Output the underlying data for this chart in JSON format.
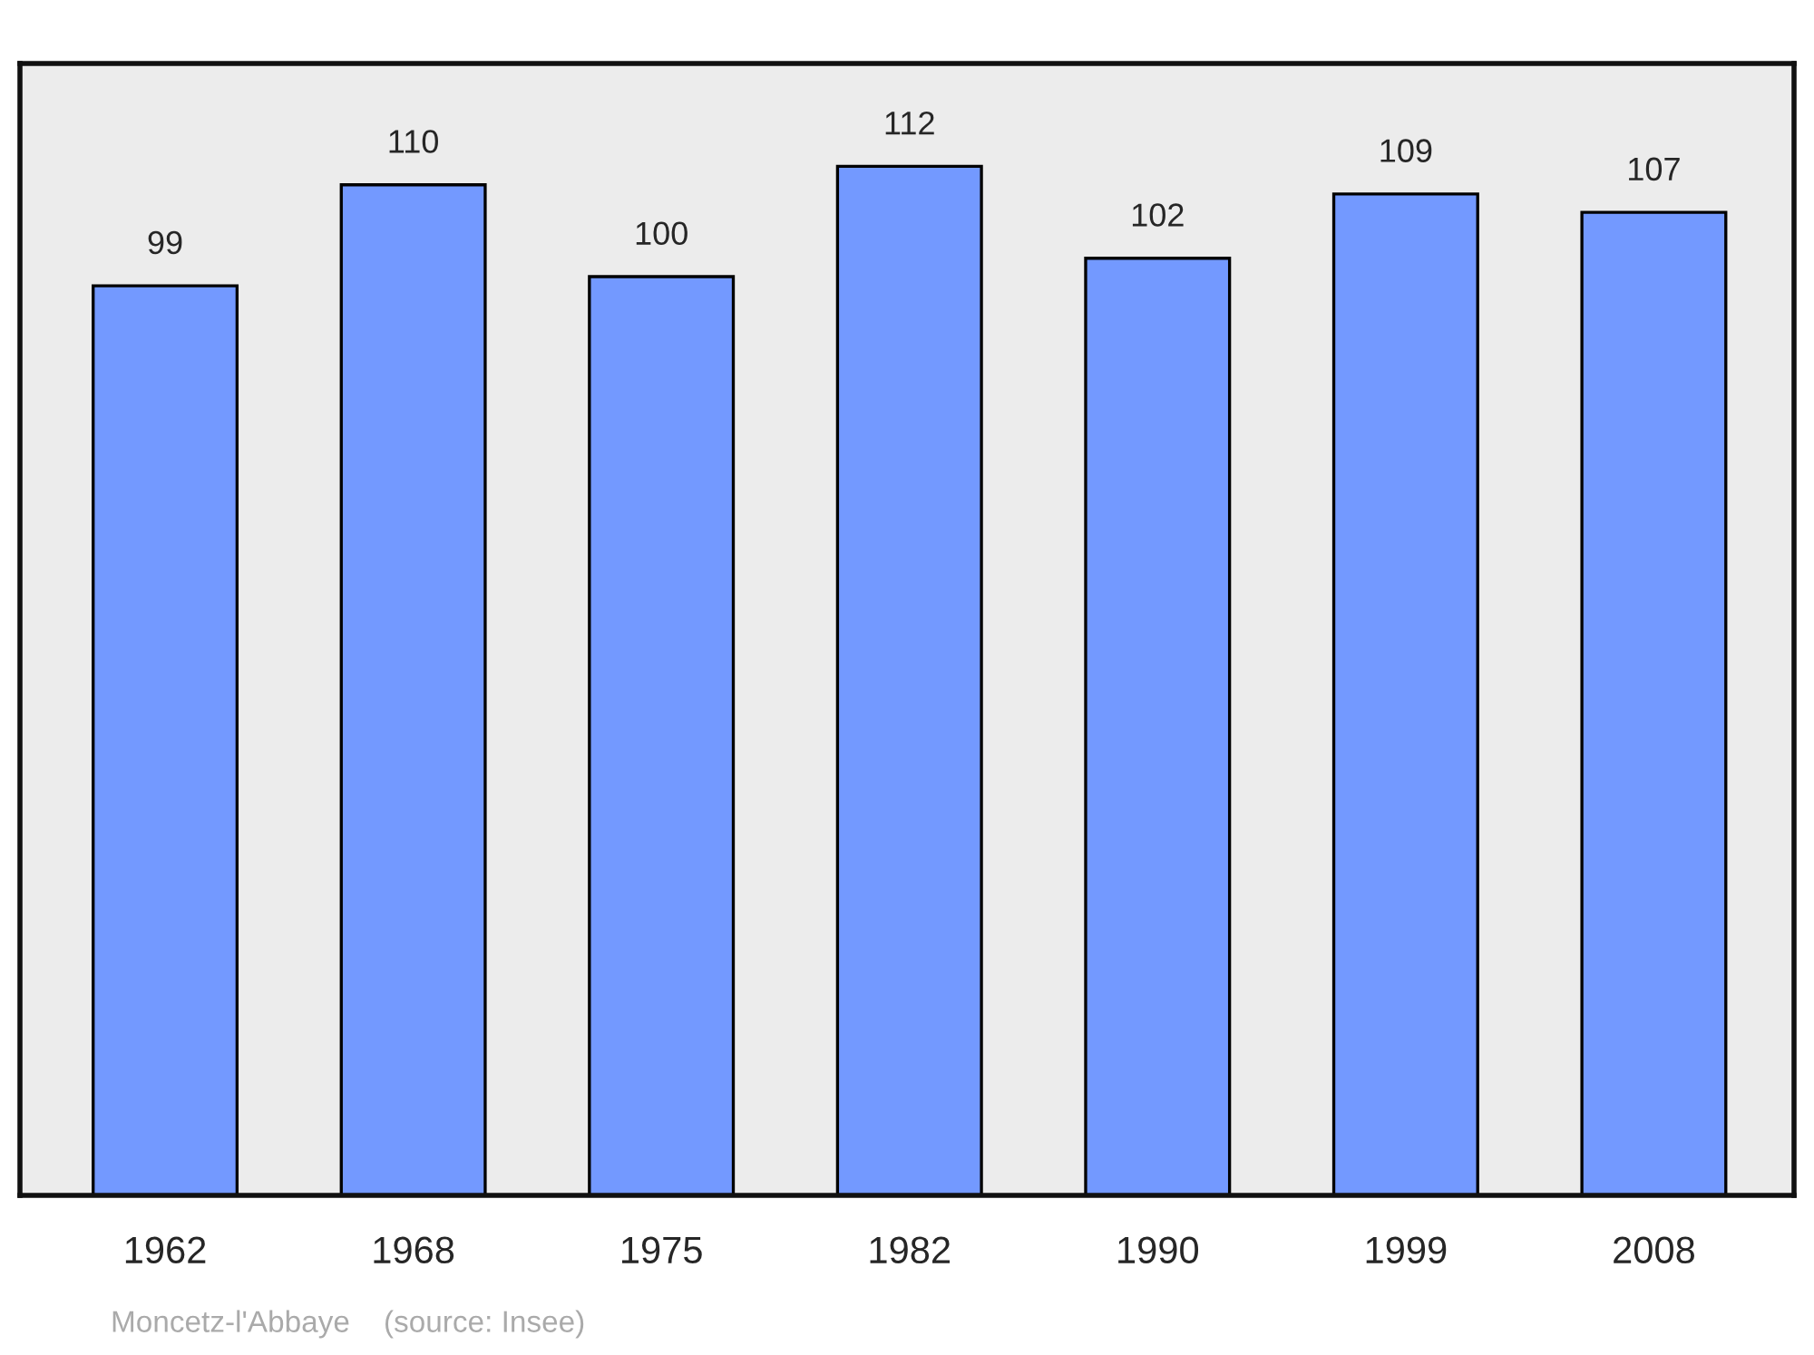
{
  "chart_data": {
    "type": "bar",
    "categories": [
      "1962",
      "1968",
      "1975",
      "1982",
      "1990",
      "1999",
      "2008"
    ],
    "values": [
      99,
      110,
      100,
      112,
      102,
      109,
      107
    ],
    "color": "#7399ff",
    "data_labels": true,
    "grid": false,
    "annotations": [
      "Moncetz-l'Abbaye    (source: Insee)"
    ]
  }
}
